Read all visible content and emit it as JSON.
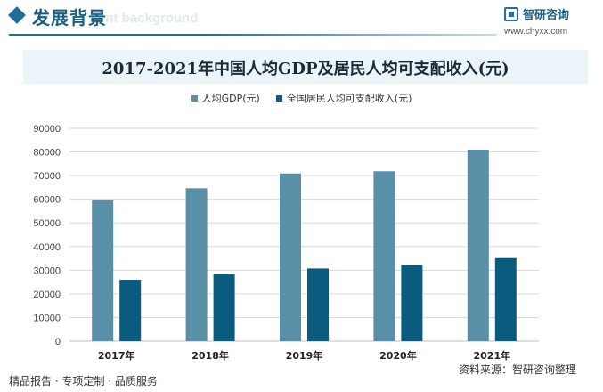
{
  "header": {
    "section_title": "发展背景",
    "section_subtitle": "ent background",
    "brand_name": "智研咨询",
    "brand_url": "www.chyxx.com"
  },
  "footer": {
    "left": "精品报告 · 专项定制 · 品质服务",
    "right": "资料来源：智研咨询整理"
  },
  "colors": {
    "series1": "#5a8fa8",
    "series2": "#0b5b7e",
    "grid": "#d9d9d9",
    "accent": "#1f6e98"
  },
  "chart_data": {
    "type": "bar",
    "title": "2017-2021年中国人均GDP及居民人均可支配收入(元)",
    "categories": [
      "2017年",
      "2018年",
      "2019年",
      "2020年",
      "2021年"
    ],
    "series": [
      {
        "name": "人均GDP(元)",
        "values": [
          59660,
          64644,
          70892,
          71828,
          80976
        ]
      },
      {
        "name": "全国居民人均可支配收入(元)",
        "values": [
          25974,
          28228,
          30733,
          32189,
          35128
        ]
      }
    ],
    "yticks": [
      "0",
      "10000",
      "20000",
      "30000",
      "40000",
      "50000",
      "60000",
      "70000",
      "80000",
      "90000"
    ],
    "ylim": [
      0,
      90000
    ],
    "grid": true,
    "legend_position": "top-center"
  }
}
